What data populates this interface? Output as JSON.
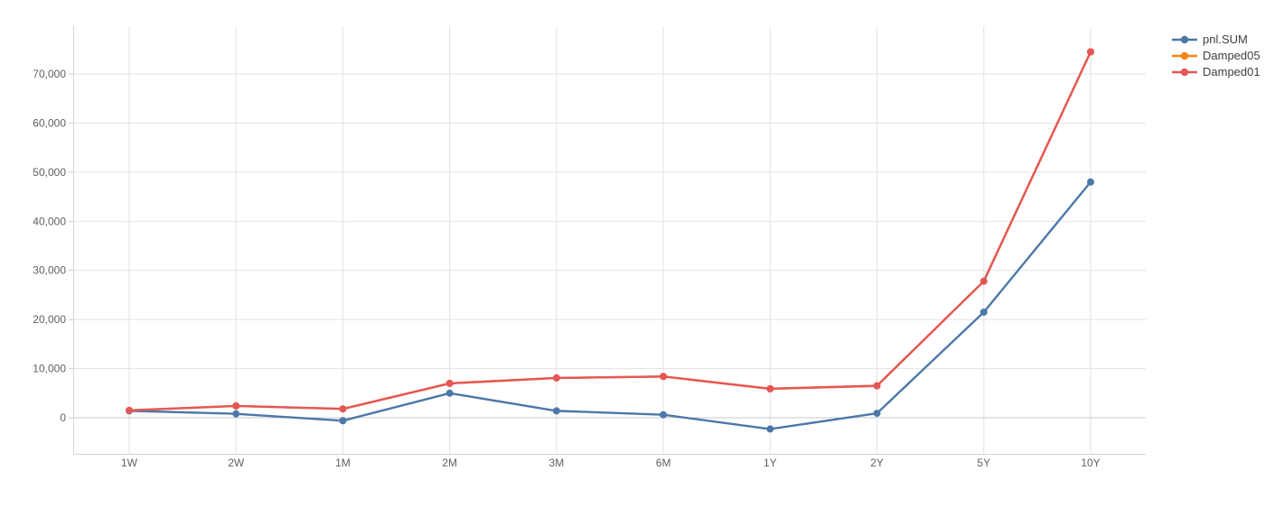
{
  "chart_data": {
    "type": "line",
    "title": "",
    "xlabel": "",
    "ylabel": "",
    "grid": true,
    "legend_position": "right",
    "categories": [
      "1W",
      "2W",
      "1M",
      "2M",
      "3M",
      "6M",
      "1Y",
      "2Y",
      "5Y",
      "10Y"
    ],
    "series": [
      {
        "name": "pnl.SUM",
        "color": "#4c78a8",
        "values": [
          1400,
          800,
          -600,
          5000,
          1400,
          600,
          -2300,
          900,
          21500,
          48000
        ]
      },
      {
        "name": "Damped05",
        "color": "#f58518",
        "values": [
          1500,
          2400,
          1800,
          7000,
          8100,
          8400,
          5900,
          6500,
          27800,
          74500
        ]
      },
      {
        "name": "Damped01",
        "color": "#e45756",
        "values": [
          1500,
          2400,
          1800,
          7000,
          8100,
          8400,
          5900,
          6500,
          27800,
          74500
        ]
      }
    ],
    "y_ticks": [
      0,
      10000,
      20000,
      30000,
      40000,
      50000,
      60000,
      70000
    ],
    "y_tick_labels": [
      "0",
      "10,000",
      "20,000",
      "30,000",
      "40,000",
      "50,000",
      "60,000",
      "70,000"
    ],
    "ylim": [
      -7349,
      79735
    ],
    "note_hidden_series": "Damped05 is drawn beneath Damped01 and is fully overlapped"
  },
  "legend": {
    "items": [
      {
        "label": "pnl.SUM",
        "color": "#4c78a8"
      },
      {
        "label": "Damped05",
        "color": "#f58518"
      },
      {
        "label": "Damped01",
        "color": "#e45756"
      }
    ]
  }
}
